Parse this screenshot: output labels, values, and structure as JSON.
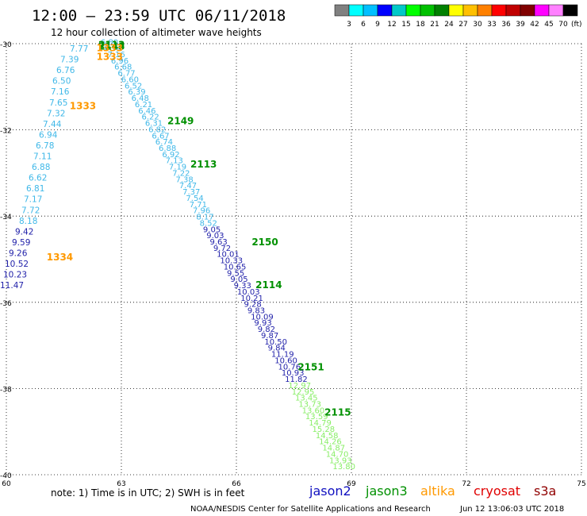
{
  "header": {
    "title": "12:00 – 23:59 UTC 06/11/2018",
    "subtitle": "12 hour collection of altimeter wave heights"
  },
  "colorbar": {
    "labels": [
      "3",
      "6",
      "9",
      "12",
      "15",
      "18",
      "21",
      "24",
      "27",
      "30",
      "33",
      "36",
      "39",
      "42",
      "45",
      "70"
    ],
    "unit": "(ft)",
    "colors": [
      "#808080",
      "#00ffff",
      "#00bfff",
      "#0000ff",
      "#00c8c8",
      "#00ff00",
      "#00c000",
      "#008000",
      "#ffff00",
      "#ffc000",
      "#ff8000",
      "#ff0000",
      "#c00000",
      "#800000",
      "#ff00ff",
      "#ff80ff",
      "#000000"
    ]
  },
  "footer": {
    "note": "note:  1) Time is in UTC;  2) SWH is in feet",
    "satellites": [
      {
        "name": "jason2",
        "color": "#1010c0"
      },
      {
        "name": "jason3",
        "color": "#009000"
      },
      {
        "name": "altika",
        "color": "#ff9900"
      },
      {
        "name": "cryosat",
        "color": "#e00000"
      },
      {
        "name": "s3a",
        "color": "#900000"
      }
    ],
    "credit": "NOAA/NESDIS Center for Satellite Applications and Research",
    "timestamp": "Jun 12 13:06:03 UTC 2018"
  },
  "chart_data": {
    "type": "scatter",
    "title": "12:00 – 23:59 UTC 06/11/2018",
    "subtitle": "12 hour collection of altimeter wave heights",
    "xlabel": "",
    "ylabel": "",
    "xlim": [
      60,
      75
    ],
    "ylim": [
      -40,
      -30
    ],
    "xticks": [
      "60",
      "63",
      "66",
      "69",
      "72",
      "75"
    ],
    "yticks": [
      "-30",
      "-32",
      "-34",
      "-36",
      "-38",
      "-40"
    ],
    "grid": true,
    "colors": {
      "swh_3_6": "#40b8e8",
      "swh_9_12": "#2222aa",
      "swh_12_15": "#88ee66",
      "jason3": "#009000",
      "altika": "#ff9900"
    },
    "altika_side_values": [
      "7.77",
      "7.39",
      "6.76",
      "6.50",
      "7.16",
      "7.65",
      "7.32",
      "7.44",
      "6.94",
      "6.78",
      "7.11",
      "6.88",
      "6.62",
      "6.81",
      "7.17",
      "7.72",
      "8.18",
      "9.42",
      "9.59",
      "9.26",
      "10.52",
      "10.23",
      "11.47"
    ],
    "track_values": [
      "6.80",
      "6.94",
      "7.16",
      "6.96",
      "6.68",
      "6.77",
      "6.60",
      "6.52",
      "6.39",
      "6.48",
      "6.21",
      "6.46",
      "6.22",
      "6.31",
      "6.82",
      "6.67",
      "6.74",
      "6.88",
      "6.92",
      "7.13",
      "7.19",
      "7.22",
      "7.38",
      "7.47",
      "7.37",
      "7.54",
      "7.71",
      "7.96",
      "8.17",
      "8.52",
      "9.05",
      "9.03",
      "9.63",
      "9.72",
      "10.01",
      "10.33",
      "10.65",
      "9.55",
      "9.05",
      "9.33",
      "10.03",
      "10.21",
      "9.28",
      "9.83",
      "10.09",
      "9.93",
      "9.82",
      "9.87",
      "10.50",
      "9.84",
      "11.19",
      "10.60",
      "10.76",
      "10.93",
      "11.82",
      "12.97",
      "12.95",
      "13.45",
      "13.73",
      "13.60",
      "13.59",
      "14.79",
      "15.28",
      "14.58",
      "14.26",
      "14.87",
      "14.70",
      "13.93",
      "13.80"
    ],
    "pass_labels": [
      {
        "text": "2113",
        "x": 62.4,
        "y": -30.03
      },
      {
        "text": "2148",
        "x": 62.4,
        "y": -30.06
      },
      {
        "text": "2149",
        "x": 64.2,
        "y": -31.8
      },
      {
        "text": "2113",
        "x": 64.8,
        "y": -32.8
      },
      {
        "text": "2150",
        "x": 66.4,
        "y": -34.6
      },
      {
        "text": "2114",
        "x": 66.5,
        "y": -35.6
      },
      {
        "text": "2151",
        "x": 67.6,
        "y": -37.5
      },
      {
        "text": "2115",
        "x": 68.3,
        "y": -38.55
      }
    ],
    "altika_labels": [
      {
        "text": "1333",
        "x": 62.35,
        "y": -30.1
      },
      {
        "text": "1333",
        "x": 62.35,
        "y": -30.3
      },
      {
        "text": "1333",
        "x": 61.65,
        "y": -31.45
      },
      {
        "text": "1334",
        "x": 61.05,
        "y": -34.95
      }
    ]
  }
}
